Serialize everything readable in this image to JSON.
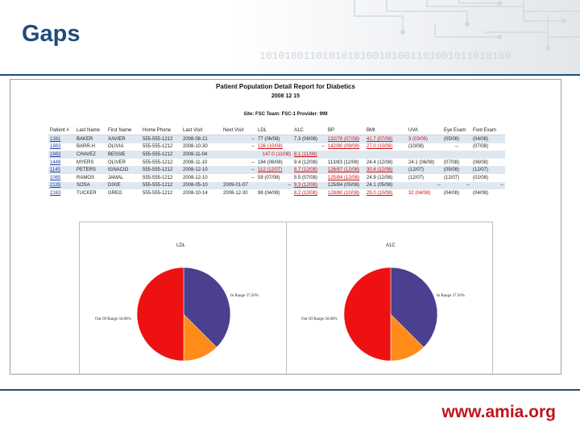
{
  "slide": {
    "title": "Gaps",
    "binary_text": "1010100110101010100101001101001011010100",
    "footer_url": "www.amia.org",
    "accent": "#1f4d7a",
    "url_color": "#c0141c"
  },
  "report": {
    "title": "Patient Population Detail Report for Diabetics",
    "date": "2008 12 15",
    "site_line": "Site: FSC Team: FSC-1 Provider: 999",
    "columns": [
      "Patient #",
      "Last Name",
      "First Name",
      "Home Phone",
      "Last Visit",
      "Next Visit",
      "LDL",
      "A1C",
      "BP",
      "BMI",
      "UVA",
      "Eye Exam",
      "Foot Exam"
    ],
    "rows": [
      {
        "id": "1381",
        "last": "BAKER",
        "first": "XAVIER",
        "phone": "555-555-1212",
        "last_visit": "2008-08-21",
        "next_visit": "--",
        "ldl": "77 (06/08)",
        "a1c": "7.3 (06/08)",
        "bp": "132/78 (07/08)",
        "bmi": "41.7 (07/08)",
        "uva": "3 (03/08)",
        "eye": "(05/08)",
        "foot": "(04/08)"
      },
      {
        "id": "1883",
        "last": "BARR-H",
        "first": "OLIVIA",
        "phone": "555-555-1212",
        "last_visit": "2008-10-30",
        "next_visit": "--",
        "ldl": "126 (10/08)",
        "a1c": "--",
        "bp": "142/90 (09/08)",
        "bmi": "27.0 (10/08)",
        "uva": "(10/08)",
        "eye": "--",
        "foot": "(07/08)"
      },
      {
        "id": "1883",
        "last": "CHAVEZ",
        "first": "BESSIE",
        "phone": "555-555-1212",
        "last_visit": "2008-11-04",
        "next_visit": "",
        "ldl": "147.0 (11/08)",
        "a1c": "8.1 (11/08)",
        "bp": "",
        "bmi": "",
        "uva": "",
        "eye": "",
        "foot": ""
      },
      {
        "id": "1448",
        "last": "MYERS",
        "first": "OLIVER",
        "phone": "555-555-1212",
        "last_visit": "2008-11-10",
        "next_visit": "--",
        "ldl": "184 (06/08)",
        "a1c": "9.4 (12/08)",
        "bp": "113/83 (12/08)",
        "bmi": "24.4 (12/08)",
        "uva": "24.1 (06/08)",
        "eye": "(07/08)",
        "foot": "(06/08)"
      },
      {
        "id": "1145",
        "last": "PETERS",
        "first": "IGNACIO",
        "phone": "555-555-1212",
        "last_visit": "2008-12-10",
        "next_visit": "--",
        "ldl": "112 (12/07)",
        "a1c": "8.7 (12/08)",
        "bp": "126/87 (12/08)",
        "bmi": "30.4 (12/08)",
        "uva": "(12/07)",
        "eye": "(05/08)",
        "foot": "(12/07)"
      },
      {
        "id": "1065",
        "last": "RAMOS",
        "first": "JAMAL",
        "phone": "555-555-1212",
        "last_visit": "2008-12-10",
        "next_visit": "--",
        "ldl": "59 (07/08)",
        "a1c": "5.5 (07/08)",
        "bp": "125/84 (12/08)",
        "bmi": "24.9 (12/08)",
        "uva": "(12/07)",
        "eye": "(12/07)",
        "foot": "(02/08)"
      },
      {
        "id": "2135",
        "last": "SOSA",
        "first": "DIXIE",
        "phone": "555-555-1212",
        "last_visit": "2008-05-10",
        "next_visit": "2009-01-07",
        "ldl": "--",
        "a1c": "9.3 (12/08)",
        "bp": "125/84 (05/08)",
        "bmi": "24.1 (05/08)",
        "uva": "--",
        "eye": "--",
        "foot": "--"
      },
      {
        "id": "2163",
        "last": "TUCKER",
        "first": "GREG",
        "phone": "555-555-1212",
        "last_visit": "2008-10-14",
        "next_visit": "2008-12-30",
        "ldl": "98 (04/08)",
        "a1c": "8.2 (10/08)",
        "bp": "128/80 (10/08)",
        "bmi": "29.0 (10/08)",
        "uva": "32 (04/08)",
        "eye": "(04/08)",
        "foot": "(04/08)"
      }
    ]
  },
  "pies": {
    "ldl": {
      "title": "LDL",
      "in_range_label": "In Range 37.50%",
      "out_range_label": "Out Of Range 50.00%"
    },
    "a1c": {
      "title": "A1C",
      "in_range_label": "In Range 37.50%",
      "out_range_label": "Out Of Range 50.00%"
    },
    "colors": {
      "out_of_range": "#ee1111",
      "in_range": "#4b3f8f",
      "other": "#ff8c1a"
    }
  },
  "chart_data": [
    {
      "type": "pie",
      "title": "LDL",
      "slices": [
        {
          "name": "In Range",
          "value": 37.5
        },
        {
          "name": "Other",
          "value": 12.5
        },
        {
          "name": "Out Of Range",
          "value": 50.0
        }
      ]
    },
    {
      "type": "pie",
      "title": "A1C",
      "slices": [
        {
          "name": "In Range",
          "value": 37.5
        },
        {
          "name": "Other",
          "value": 12.5
        },
        {
          "name": "Out Of Range",
          "value": 50.0
        }
      ]
    }
  ]
}
